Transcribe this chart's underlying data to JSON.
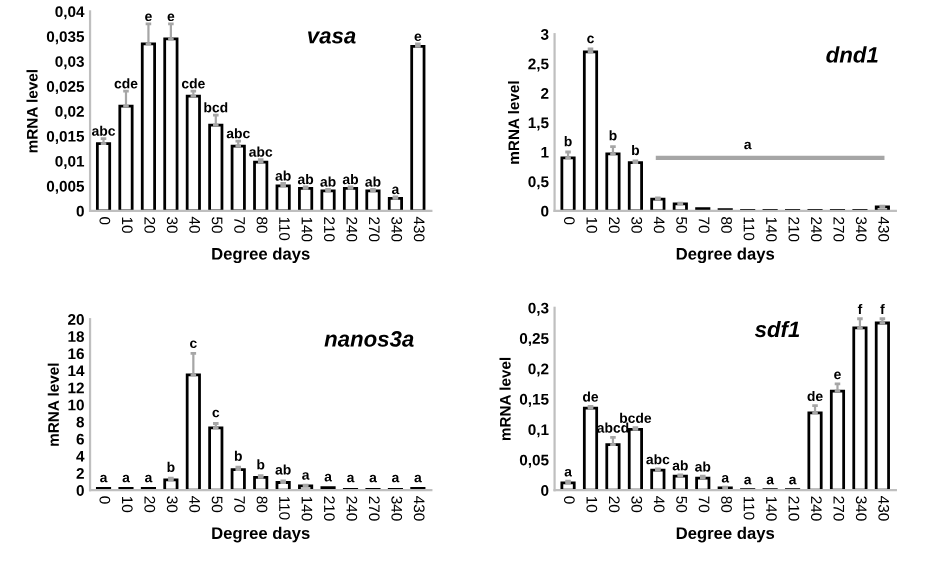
{
  "chart_data": [
    {
      "type": "bar",
      "title": "vasa",
      "xlabel": "Degree days",
      "ylabel": "mRNA level",
      "categories": [
        "0",
        "10",
        "20",
        "30",
        "40",
        "50",
        "70",
        "80",
        "110",
        "140",
        "210",
        "240",
        "270",
        "340",
        "430"
      ],
      "values": [
        0.0135,
        0.021,
        0.0335,
        0.0345,
        0.023,
        0.0172,
        0.013,
        0.0098,
        0.005,
        0.0045,
        0.004,
        0.0045,
        0.004,
        0.0025,
        0.033
      ],
      "errors": [
        0.001,
        0.003,
        0.004,
        0.003,
        0.001,
        0.002,
        0.001,
        0.0005,
        0.0005,
        0.0003,
        0.0003,
        0.0003,
        0.0003,
        0.0003,
        0.0005
      ],
      "color": "#ffffff",
      "ylim": [
        0,
        0.04
      ],
      "yticks": [
        0,
        {
          "value": 0.005,
          "label": "0,005"
        },
        {
          "value": 0.01,
          "label": "0,01"
        },
        {
          "value": 0.015,
          "label": "0,015"
        },
        {
          "value": 0.02,
          "label": "0,02"
        },
        {
          "value": 0.025,
          "label": "0,025"
        },
        {
          "value": 0.03,
          "label": "0,03"
        },
        {
          "value": 0.035,
          "label": "0,035"
        },
        {
          "value": 0.04,
          "label": "0,04"
        }
      ],
      "annotations": [
        {
          "text": "abc",
          "x": "0",
          "y": 0.0145
        },
        {
          "text": "cde",
          "x": "10",
          "y": 0.024
        },
        {
          "text": "e",
          "x": "20",
          "y": 0.0375
        },
        {
          "text": "e",
          "x": "30",
          "y": 0.0375
        },
        {
          "text": "cde",
          "x": "40",
          "y": 0.024
        },
        {
          "text": "bcd",
          "x": "50",
          "y": 0.0192
        },
        {
          "text": "abc",
          "x": "70",
          "y": 0.014
        },
        {
          "text": "abc",
          "x": "80",
          "y": 0.0103
        },
        {
          "text": "ab",
          "x": "110",
          "y": 0.0055
        },
        {
          "text": "ab",
          "x": "140",
          "y": 0.0048
        },
        {
          "text": "ab",
          "x": "210",
          "y": 0.0043
        },
        {
          "text": "ab",
          "x": "240",
          "y": 0.0048
        },
        {
          "text": "ab",
          "x": "270",
          "y": 0.0043
        },
        {
          "text": "a",
          "x": "340",
          "y": 0.0028
        },
        {
          "text": "e",
          "x": "430",
          "y": 0.0335
        }
      ],
      "grid": false,
      "legend": false
    },
    {
      "type": "bar",
      "title": "dnd1",
      "xlabel": "Degree days",
      "ylabel": "mRNA level",
      "categories": [
        "0",
        "10",
        "20",
        "30",
        "40",
        "50",
        "70",
        "80",
        "110",
        "140",
        "210",
        "240",
        "270",
        "340",
        "430"
      ],
      "series": [
        {
          "type": "bar",
          "color": "#ffffff",
          "values": [
            0.9,
            2.7,
            0.97,
            0.82,
            0.2,
            0.12,
            0.04,
            0.02,
            0.01,
            0.01,
            0.01,
            0.01,
            0.01,
            0.01,
            0.07
          ],
          "errors": [
            0.1,
            0.05,
            0.12,
            0.03,
            0.02,
            0.01,
            null,
            null,
            null,
            null,
            null,
            null,
            null,
            null,
            0.01
          ]
        },
        {
          "type": "line",
          "color": "#a6a6a6",
          "values": [
            null,
            null,
            null,
            null,
            0.9,
            0.9,
            0.9,
            0.9,
            0.9,
            0.9,
            0.9,
            0.9,
            0.9,
            0.9,
            0.9
          ]
        }
      ],
      "ylim": [
        0,
        3
      ],
      "yticks": [
        0,
        {
          "value": 0.5,
          "label": "0,5"
        },
        1,
        {
          "value": 1.5,
          "label": "1,5"
        },
        2,
        {
          "value": 2.5,
          "label": "2,5"
        },
        3
      ],
      "annotations": [
        {
          "text": "b",
          "x": "0",
          "y": 1.05
        },
        {
          "text": "c",
          "x": "10",
          "y": 2.8
        },
        {
          "text": "b",
          "x": "20",
          "y": 1.15
        },
        {
          "text": "b",
          "x": "30",
          "y": 0.9
        },
        {
          "text": "a",
          "x": "110",
          "y": 1.0
        }
      ],
      "grid": false,
      "legend": false
    },
    {
      "type": "bar",
      "title": "nanos3a",
      "xlabel": "Degree days",
      "ylabel": "mRNA level",
      "categories": [
        "0",
        "10",
        "20",
        "30",
        "40",
        "50",
        "70",
        "80",
        "110",
        "140",
        "210",
        "240",
        "270",
        "340",
        "430"
      ],
      "values": [
        0.2,
        0.2,
        0.2,
        1.2,
        13.5,
        7.3,
        2.4,
        1.5,
        0.9,
        0.5,
        0.3,
        0.1,
        0.1,
        0.1,
        0.2
      ],
      "errors": [
        null,
        null,
        null,
        0.2,
        2.5,
        0.5,
        0.3,
        0.2,
        0.2,
        0.1,
        null,
        null,
        null,
        null,
        null
      ],
      "color": "#ffffff",
      "ylim": [
        0,
        20
      ],
      "yticks": [
        0,
        2,
        4,
        6,
        8,
        10,
        12,
        14,
        16,
        18,
        20
      ],
      "annotations": [
        {
          "text": "a",
          "x": "0",
          "y": 0.6
        },
        {
          "text": "a",
          "x": "10",
          "y": 0.6
        },
        {
          "text": "a",
          "x": "20",
          "y": 0.6
        },
        {
          "text": "b",
          "x": "30",
          "y": 1.8
        },
        {
          "text": "c",
          "x": "40",
          "y": 16.3
        },
        {
          "text": "c",
          "x": "50",
          "y": 8.2
        },
        {
          "text": "b",
          "x": "70",
          "y": 3.1
        },
        {
          "text": "b",
          "x": "80",
          "y": 2.1
        },
        {
          "text": "ab",
          "x": "110",
          "y": 1.5
        },
        {
          "text": "a",
          "x": "140",
          "y": 0.9
        },
        {
          "text": "a",
          "x": "210",
          "y": 0.7
        },
        {
          "text": "a",
          "x": "240",
          "y": 0.6
        },
        {
          "text": "a",
          "x": "270",
          "y": 0.6
        },
        {
          "text": "a",
          "x": "340",
          "y": 0.6
        },
        {
          "text": "a",
          "x": "430",
          "y": 0.6
        }
      ],
      "grid": false,
      "legend": false
    },
    {
      "type": "bar",
      "title": "sdf1",
      "xlabel": "Degree days",
      "ylabel": "mRNA level",
      "categories": [
        "0",
        "10",
        "20",
        "30",
        "40",
        "50",
        "70",
        "80",
        "110",
        "140",
        "210",
        "240",
        "270",
        "340",
        "430"
      ],
      "values": [
        0.012,
        0.135,
        0.075,
        0.1,
        0.033,
        0.023,
        0.02,
        0.004,
        0.001,
        0.001,
        0.001,
        0.127,
        0.163,
        0.267,
        0.275
      ],
      "errors": [
        0.003,
        0.003,
        0.012,
        0.003,
        0.002,
        0.002,
        0.003,
        0.001,
        null,
        null,
        null,
        0.012,
        0.012,
        0.015,
        0.007
      ],
      "color": "#ffffff",
      "ylim": [
        0,
        0.3
      ],
      "yticks": [
        0,
        {
          "value": 0.05,
          "label": "0,05"
        },
        {
          "value": 0.1,
          "label": "0,1"
        },
        {
          "value": 0.15,
          "label": "0,15"
        },
        {
          "value": 0.2,
          "label": "0,2"
        },
        {
          "value": 0.25,
          "label": "0,25"
        },
        {
          "value": 0.3,
          "label": "0,3"
        }
      ],
      "annotations": [
        {
          "text": "a",
          "x": "0",
          "y": 0.018
        },
        {
          "text": "de",
          "x": "10",
          "y": 0.141
        },
        {
          "text": "abcd",
          "x": "20",
          "y": 0.09
        },
        {
          "text": "bcde",
          "x": "30",
          "y": 0.106
        },
        {
          "text": "abc",
          "x": "40",
          "y": 0.038
        },
        {
          "text": "ab",
          "x": "50",
          "y": 0.028
        },
        {
          "text": "ab",
          "x": "70",
          "y": 0.026
        },
        {
          "text": "a",
          "x": "80",
          "y": 0.008
        },
        {
          "text": "a",
          "x": "110",
          "y": 0.005
        },
        {
          "text": "a",
          "x": "140",
          "y": 0.005
        },
        {
          "text": "a",
          "x": "210",
          "y": 0.005
        },
        {
          "text": "de",
          "x": "240",
          "y": 0.142
        },
        {
          "text": "e",
          "x": "270",
          "y": 0.178
        },
        {
          "text": "f",
          "x": "340",
          "y": 0.285
        },
        {
          "text": "f",
          "x": "430",
          "y": 0.285
        }
      ],
      "grid": false,
      "legend": false
    }
  ]
}
